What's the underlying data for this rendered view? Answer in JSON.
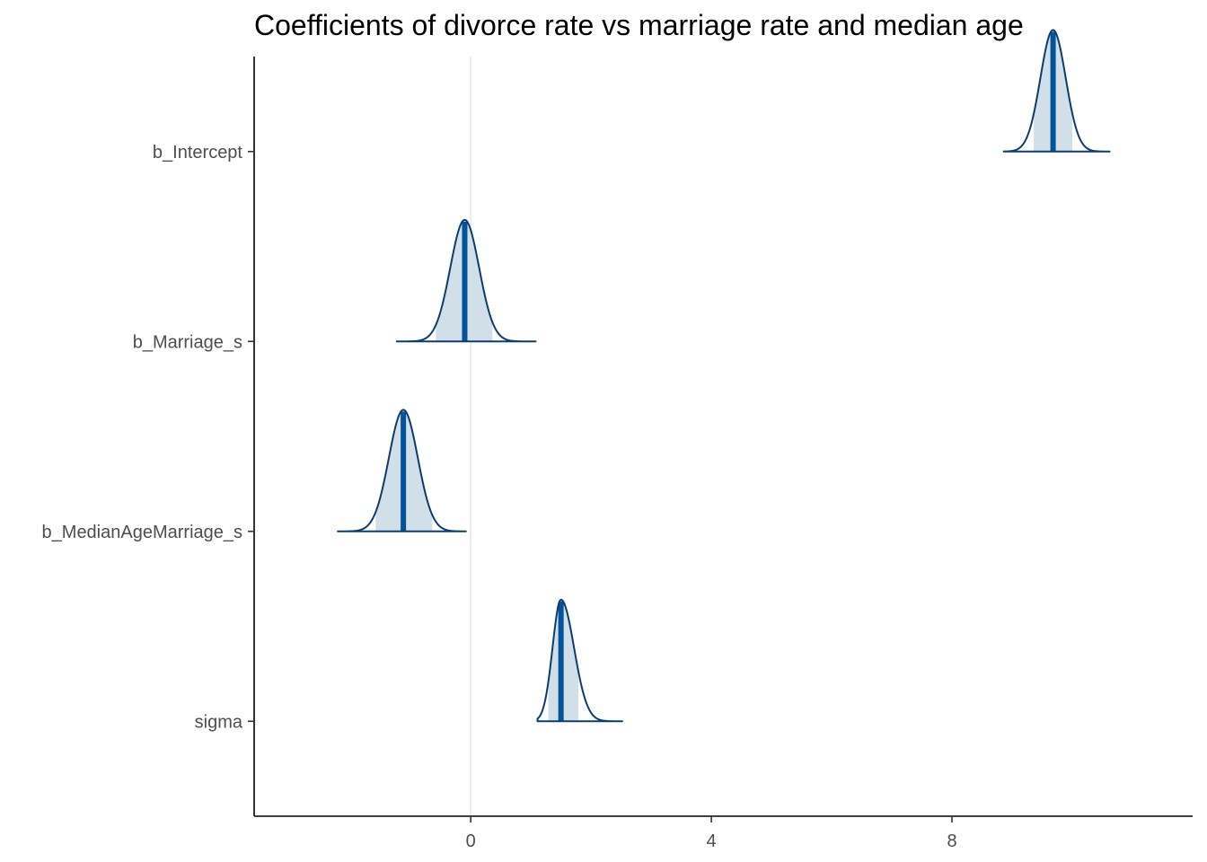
{
  "chart_data": {
    "type": "area",
    "title": "Coefficients of divorce rate vs marriage rate and median age",
    "xlabel": "",
    "ylabel": "",
    "xlim": [
      -3.6,
      12.0
    ],
    "x_ticks": [
      0,
      4,
      8
    ],
    "reference_line_x": 0,
    "grid": false,
    "legend": "none",
    "colors": {
      "outline": "#0b3d6e",
      "median": "#03539b",
      "interval_fill": "#d1dfe9",
      "reference_line": "#e3e3e3",
      "axis": "#000000"
    },
    "series": [
      {
        "name": "b_Intercept",
        "median": 9.68,
        "sd": 0.21,
        "inner": [
          9.36,
          10.0
        ],
        "range": [
          8.86,
          10.62
        ],
        "skew": 0
      },
      {
        "name": "b_Marriage_s",
        "median": -0.1,
        "sd": 0.24,
        "inner": [
          -0.58,
          0.36
        ],
        "range": [
          -1.23,
          1.08
        ],
        "skew": 0
      },
      {
        "name": "b_MedianAgeMarriage_s",
        "median": -1.12,
        "sd": 0.24,
        "inner": [
          -1.58,
          -0.64
        ],
        "range": [
          -2.21,
          -0.08
        ],
        "skew": 0
      },
      {
        "name": "sigma",
        "median": 1.5,
        "sd": 0.14,
        "inner": [
          1.29,
          1.79
        ],
        "range": [
          1.11,
          2.52
        ],
        "skew": 0.55
      }
    ]
  }
}
